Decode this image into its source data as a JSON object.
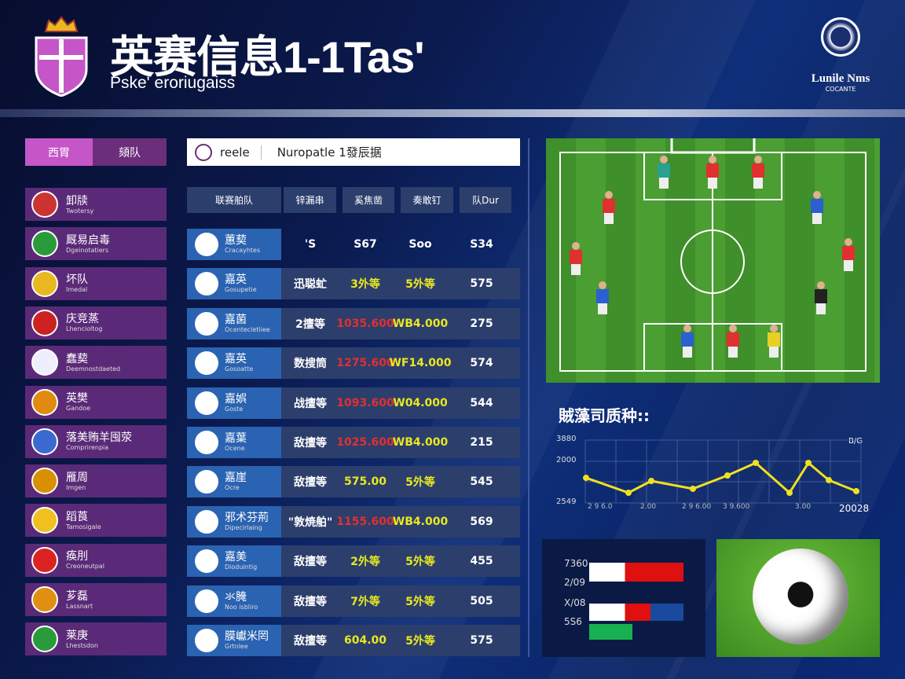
{
  "header": {
    "title": "英赛信息1-1Tas'",
    "subtitle": "Pske' eroriugaiss",
    "right_logo_text": "Lunile Nms",
    "right_logo_sub": "COCANTE"
  },
  "tabs": [
    {
      "label": "西胃",
      "active": true
    },
    {
      "label": "頦队",
      "active": false
    }
  ],
  "search": {
    "tag": "reele",
    "value": "Nuropatle 1發辰据"
  },
  "sidebar": {
    "items": [
      {
        "name": "卸牍",
        "sub": "Twotersy",
        "icon": "striped-shield-icon",
        "color": "#c33"
      },
      {
        "name": "厩易启毒",
        "sub": "Dgeinotatiers",
        "icon": "green-round-crest-icon",
        "color": "#2a9b3a"
      },
      {
        "name": "坏队",
        "sub": "Imedal",
        "icon": "yellow-shield-icon",
        "color": "#e8b820"
      },
      {
        "name": "庆竞蒸",
        "sub": "Lhencioltog",
        "icon": "union-jack-shield-icon",
        "color": "#c22"
      },
      {
        "name": "蠢葜",
        "sub": "Deemnostdaeted",
        "icon": "white-blue-shield-icon",
        "color": "#eef"
      },
      {
        "name": "英樊",
        "sub": "Gandoe",
        "icon": "orange-striped-shield-icon",
        "color": "#e08a10"
      },
      {
        "name": "落美贿羊囤荥",
        "sub": "Comprirenpia",
        "icon": "blue-white-round-icon",
        "color": "#3a6ad0"
      },
      {
        "name": "雁周",
        "sub": "Imgen",
        "icon": "german-flag-icon",
        "color": "#d89000"
      },
      {
        "name": "蹈莨",
        "sub": "Tamosigale",
        "icon": "yellow-purple-round-icon",
        "color": "#f0c020"
      },
      {
        "name": "痪刖",
        "sub": "Creoneutpal",
        "icon": "italian-flag-icon",
        "color": "#d22"
      },
      {
        "name": "芗磊",
        "sub": "Lassnart",
        "icon": "red-yellow-shield-icon",
        "color": "#e09010"
      },
      {
        "name": "莱庚",
        "sub": "Lhestsdon",
        "icon": "green-white-shield-icon",
        "color": "#2a9b3a"
      }
    ]
  },
  "table": {
    "headers": [
      "联赛舶队",
      "锌漏串",
      "奚焦凿",
      "奏敢钉",
      "队Dur"
    ],
    "rows": [
      {
        "name": "蕙葜",
        "sub": "Cracayhtes",
        "c": [
          "'S",
          "S67",
          "Soo",
          "S34"
        ],
        "col": [
          "#fff",
          "#fff",
          "#fff",
          "#fff"
        ]
      },
      {
        "name": "嘉英",
        "sub": "Gosupetie",
        "c": [
          "迅聪虻",
          "3外等",
          "5外等",
          "575"
        ],
        "col": [
          "#fff",
          "#e8e820",
          "#e8e820",
          "#fff"
        ]
      },
      {
        "name": "嘉菌",
        "sub": "Ocentecletiiee",
        "c": [
          "2擅等",
          "1035.600",
          "WB4.000",
          "275"
        ],
        "col": [
          "#fff",
          "#e03030",
          "#e8e820",
          "#fff"
        ]
      },
      {
        "name": "嘉英",
        "sub": "Gosoatte",
        "c": [
          "数搜筒",
          "1275.600",
          "WF14.000",
          "574"
        ],
        "col": [
          "#fff",
          "#e03030",
          "#e8e820",
          "#fff"
        ]
      },
      {
        "name": "嘉娯",
        "sub": "Goste",
        "c": [
          "战擅等",
          "1093.600",
          "W04.000",
          "544"
        ],
        "col": [
          "#fff",
          "#e03030",
          "#e8e820",
          "#fff"
        ]
      },
      {
        "name": "嘉葉",
        "sub": "Ocene",
        "c": [
          "敌擅等",
          "1025.600",
          "WB4.000",
          "215"
        ],
        "col": [
          "#fff",
          "#e03030",
          "#e8e820",
          "#fff"
        ]
      },
      {
        "name": "嘉崖",
        "sub": "Ocre",
        "c": [
          "敌擅等",
          "575.00",
          "5外等",
          "545"
        ],
        "col": [
          "#fff",
          "#e8e820",
          "#e8e820",
          "#fff"
        ]
      },
      {
        "name": "邪术芬荊",
        "sub": "Dipecirlaing",
        "c": [
          "\"敦焼舶\"",
          "1155.600",
          "WB4.000",
          "569"
        ],
        "col": [
          "#fff",
          "#e03030",
          "#e8e820",
          "#fff"
        ]
      },
      {
        "name": "嘉美",
        "sub": "Dioduintig",
        "c": [
          "敌擅等",
          "2外等",
          "5外等",
          "455"
        ],
        "col": [
          "#fff",
          "#e8e820",
          "#e8e820",
          "#fff"
        ]
      },
      {
        "name": "氺腌",
        "sub": "Noo isbliro",
        "c": [
          "敌擅等",
          "7外等",
          "5外等",
          "505"
        ],
        "col": [
          "#fff",
          "#e8e820",
          "#e8e820",
          "#fff"
        ]
      },
      {
        "name": "膜巘米罔",
        "sub": "Grtnlee",
        "c": [
          "敌擅等",
          "604.00",
          "5外等",
          "575"
        ],
        "col": [
          "#fff",
          "#e8e820",
          "#e8e820",
          "#fff"
        ]
      }
    ]
  },
  "chart_data": {
    "type": "line",
    "title": "賊藻司质种::",
    "unit_label": "B/G",
    "ytick_labels": [
      "3880",
      "2000",
      "2549"
    ],
    "xtick_labels": [
      "2 9 6.0",
      "2.00",
      "2 9 6.00",
      "3 9.600",
      "3.00",
      "20028"
    ],
    "ylim": [
      2549,
      3880
    ],
    "series": [
      {
        "color": "#f0e020",
        "values": [
          3081,
          2765,
          3015,
          2849,
          3131,
          3398,
          2765,
          3398,
          3032,
          2799
        ]
      }
    ]
  },
  "bar_panel": {
    "labels": [
      "7360",
      "2/09",
      "X/08",
      "5S6"
    ]
  },
  "colors": {
    "accent_purple": "#c456c8",
    "sidebar_item": "#5a2a78",
    "team_cell": "#2a63b2",
    "row_bg": "#2c3e6c",
    "highlight_yellow": "#e8e820",
    "highlight_red": "#e03030"
  }
}
